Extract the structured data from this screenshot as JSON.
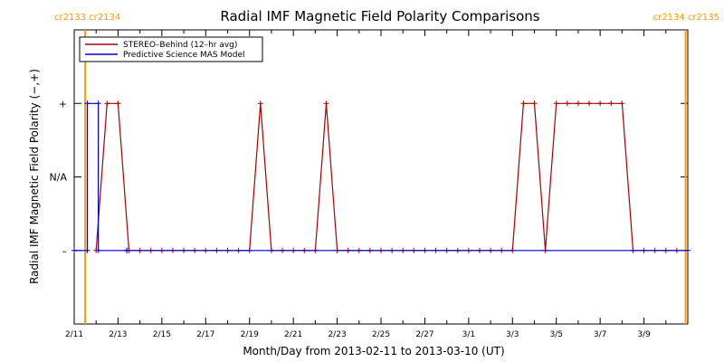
{
  "chart_data": {
    "type": "line",
    "title": "Radial IMF Magnetic Field Polarity Comparisons",
    "xlabel": "Month/Day from 2013-02-11 to 2013-03-10 (UT)",
    "ylabel": "Radial IMF Magnetic Field Polarity (−,+)",
    "xlim": [
      0,
      28.0
    ],
    "ylim": [
      -2,
      2
    ],
    "x_ticks": [
      {
        "x": 0,
        "label": "2/11"
      },
      {
        "x": 2,
        "label": "2/13"
      },
      {
        "x": 4,
        "label": "2/15"
      },
      {
        "x": 6,
        "label": "2/17"
      },
      {
        "x": 8,
        "label": "2/19"
      },
      {
        "x": 10,
        "label": "2/21"
      },
      {
        "x": 12,
        "label": "2/23"
      },
      {
        "x": 14,
        "label": "2/25"
      },
      {
        "x": 16,
        "label": "2/27"
      },
      {
        "x": 18,
        "label": "3/1"
      },
      {
        "x": 20,
        "label": "3/3"
      },
      {
        "x": 22,
        "label": "3/5"
      },
      {
        "x": 24,
        "label": "3/7"
      },
      {
        "x": 26,
        "label": "3/9"
      }
    ],
    "y_ticks": [
      {
        "y": 1,
        "label": "+"
      },
      {
        "y": 0,
        "label": "N/A"
      },
      {
        "y": -1,
        "label": "–"
      }
    ],
    "legend": {
      "position": "top-left",
      "entries": [
        {
          "name": "STEREO–Behind (12–hr avg)",
          "color": "#aa0000"
        },
        {
          "name": "Predictive Science MAS Model",
          "color": "#0000cc"
        }
      ]
    },
    "carrington_markers": [
      {
        "x": 0.5,
        "label": "cr2133 cr2134",
        "side": "left"
      },
      {
        "x": 27.9,
        "label": "cr2134 cr2135",
        "side": "right"
      }
    ],
    "series": [
      {
        "name": "STEREO–Behind (12–hr avg)",
        "color": "#aa0000",
        "marker": "plus",
        "x": [
          1.0,
          1.5,
          2.0,
          2.5,
          3.0,
          3.5,
          4.0,
          4.5,
          5.0,
          5.5,
          6.0,
          6.5,
          7.0,
          7.5,
          8.0,
          8.5,
          9.0,
          9.5,
          10.0,
          10.5,
          11.0,
          11.5,
          12.0,
          12.5,
          13.0,
          13.5,
          14.0,
          14.5,
          15.0,
          15.5,
          16.0,
          16.5,
          17.0,
          17.5,
          18.0,
          18.5,
          19.0,
          19.5,
          20.0,
          20.5,
          21.0,
          21.5,
          22.0,
          22.5,
          23.0,
          23.5,
          24.0,
          24.5,
          25.0,
          25.5,
          26.0,
          26.5,
          27.0,
          27.5
        ],
        "y": [
          -1,
          1,
          1,
          -1,
          -1,
          -1,
          -1,
          -1,
          -1,
          -1,
          -1,
          -1,
          -1,
          -1,
          -1,
          1,
          -1,
          -1,
          -1,
          -1,
          -1,
          1,
          -1,
          -1,
          -1,
          -1,
          -1,
          -1,
          -1,
          -1,
          -1,
          -1,
          -1,
          -1,
          -1,
          -1,
          -1,
          -1,
          -1,
          1,
          1,
          -1,
          1,
          1,
          1,
          1,
          1,
          1,
          1,
          -1,
          -1,
          -1,
          -1,
          -1
        ]
      },
      {
        "name": "Predictive Science MAS Model",
        "color": "#0000cc",
        "marker": "plus",
        "x": [
          0.0,
          0.6,
          0.6,
          1.1,
          1.1,
          2.4,
          2.4,
          28.0
        ],
        "y": [
          -1,
          -1,
          1,
          1,
          -1,
          -1,
          -1,
          -1
        ]
      }
    ]
  }
}
